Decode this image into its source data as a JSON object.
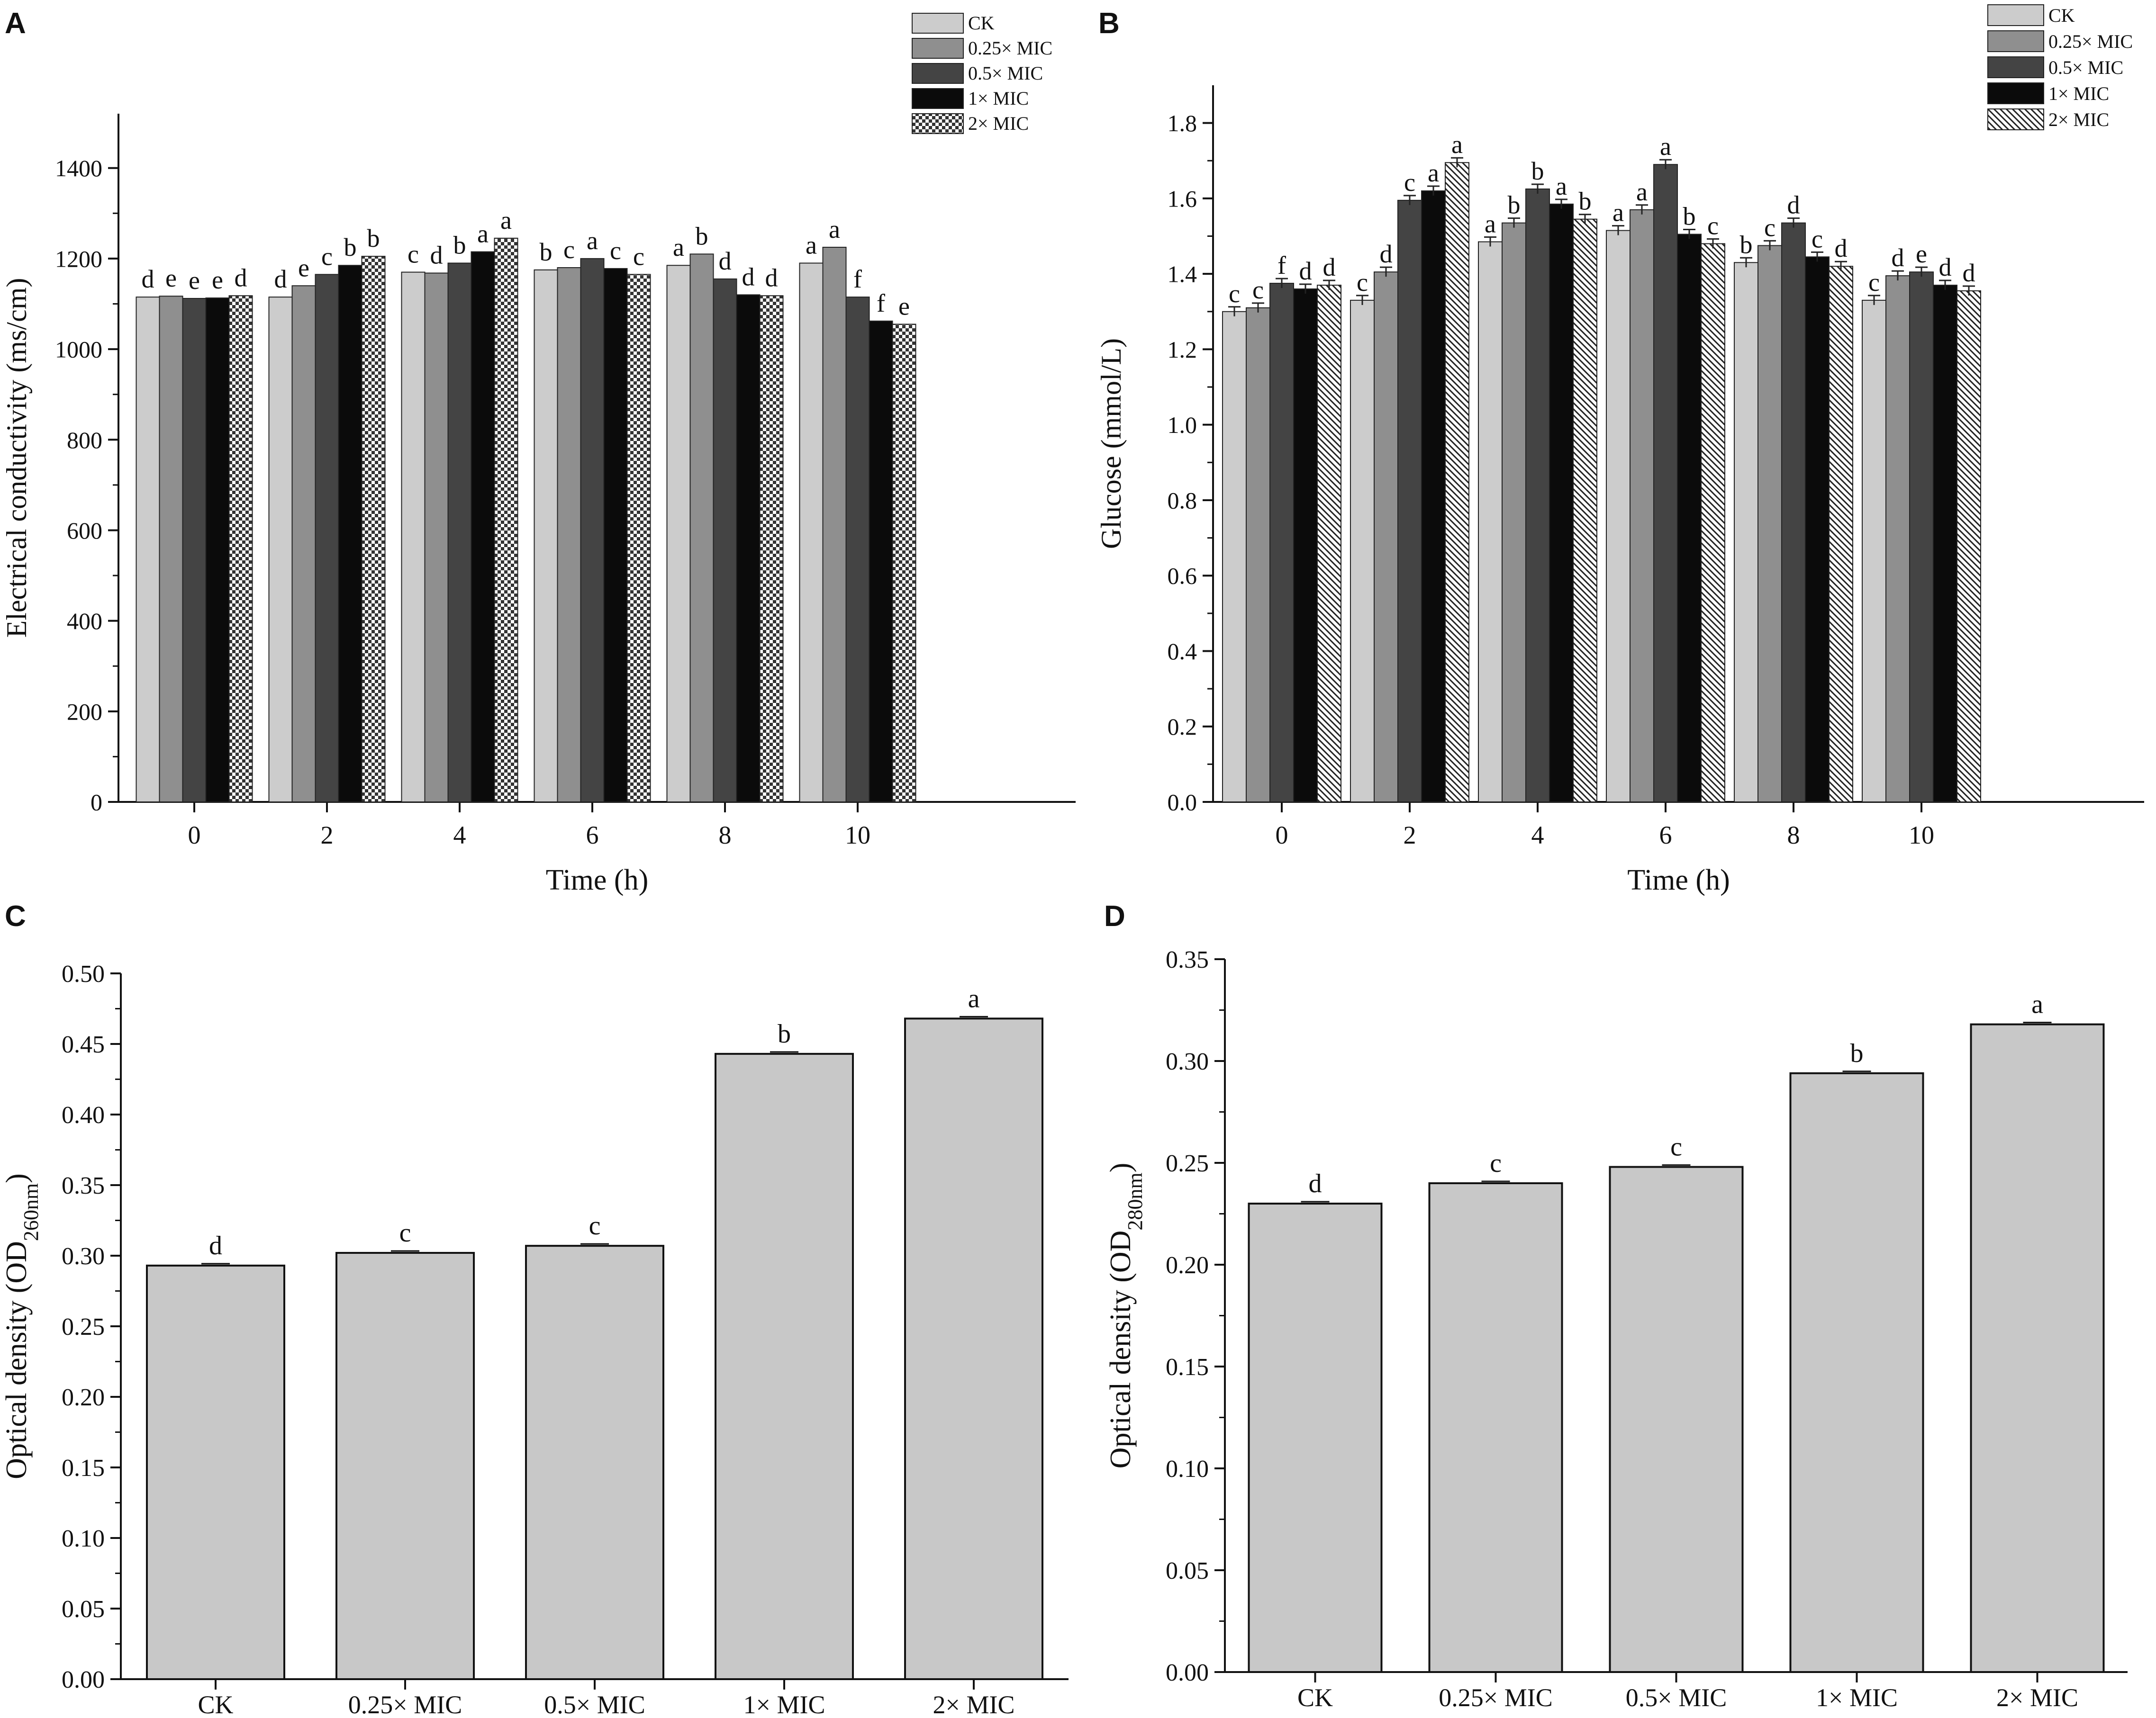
{
  "figure": {
    "colors": {
      "ck": "#cccccc",
      "mic025": "#8f8f8f",
      "mic05": "#444444",
      "mic1": "#0b0b0b",
      "mic2_pattern": "checker/hatch",
      "single_bar": "#c8c8c8",
      "axis": "#111111"
    }
  },
  "chart_data": [
    {
      "panel": "A",
      "type": "bar",
      "ylabel": "Electrical conductivity (ms/cm)",
      "xlabel": "Time (h)",
      "categories": [
        "0",
        "2",
        "4",
        "6",
        "8",
        "10"
      ],
      "ylim": [
        0,
        1520
      ],
      "yticks": [
        0,
        200,
        400,
        600,
        800,
        1000,
        1200,
        1400
      ],
      "legend": {
        "position": "top-right",
        "entries": [
          "CK",
          "0.25× MIC",
          "0.5× MIC",
          "1× MIC",
          "2× MIC"
        ]
      },
      "series": [
        {
          "name": "CK",
          "values": [
            1115,
            1115,
            1170,
            1175,
            1185,
            1190
          ],
          "labels": [
            "d",
            "d",
            "c",
            "b",
            "a",
            "a"
          ]
        },
        {
          "name": "0.25× MIC",
          "values": [
            1117,
            1140,
            1168,
            1180,
            1210,
            1225
          ],
          "labels": [
            "e",
            "e",
            "d",
            "c",
            "b",
            "a"
          ]
        },
        {
          "name": "0.5× MIC",
          "values": [
            1112,
            1165,
            1190,
            1200,
            1155,
            1115
          ],
          "labels": [
            "e",
            "c",
            "b",
            "a",
            "d",
            "f"
          ]
        },
        {
          "name": "1× MIC",
          "values": [
            1113,
            1185,
            1215,
            1178,
            1120,
            1062
          ],
          "labels": [
            "e",
            "b",
            "a",
            "c",
            "d",
            "f"
          ]
        },
        {
          "name": "2× MIC",
          "values": [
            1118,
            1205,
            1245,
            1165,
            1118,
            1055
          ],
          "labels": [
            "d",
            "b",
            "a",
            "c",
            "d",
            "e"
          ]
        }
      ]
    },
    {
      "panel": "B",
      "type": "bar",
      "ylabel": "Glucose (mmol/L)",
      "xlabel": "Time (h)",
      "categories": [
        "0",
        "2",
        "4",
        "6",
        "8",
        "10"
      ],
      "ylim": [
        0,
        1.9
      ],
      "yticks": [
        "0.0",
        "0.2",
        "0.4",
        "0.6",
        "0.8",
        "1.0",
        "1.2",
        "1.4",
        "1.6",
        "1.8"
      ],
      "legend": {
        "position": "top-right",
        "entries": [
          "CK",
          "0.25× MIC",
          "0.5× MIC",
          "1× MIC",
          "2× MIC"
        ]
      },
      "series": [
        {
          "name": "CK",
          "values": [
            1.3,
            1.33,
            1.485,
            1.515,
            1.43,
            1.33
          ],
          "labels": [
            "c",
            "c",
            "a",
            "a",
            "b",
            "c"
          ]
        },
        {
          "name": "0.25× MIC",
          "values": [
            1.31,
            1.405,
            1.535,
            1.57,
            1.475,
            1.395
          ],
          "labels": [
            "c",
            "d",
            "b",
            "a",
            "c",
            "d"
          ]
        },
        {
          "name": "0.5× MIC",
          "values": [
            1.375,
            1.595,
            1.625,
            1.69,
            1.535,
            1.405
          ],
          "labels": [
            "f",
            "c",
            "b",
            "a",
            "d",
            "e"
          ]
        },
        {
          "name": "1× MIC",
          "values": [
            1.36,
            1.62,
            1.585,
            1.505,
            1.445,
            1.37
          ],
          "labels": [
            "d",
            "a",
            "a",
            "b",
            "c",
            "d"
          ]
        },
        {
          "name": "2× MIC",
          "values": [
            1.37,
            1.695,
            1.545,
            1.48,
            1.42,
            1.355
          ],
          "labels": [
            "d",
            "a",
            "b",
            "c",
            "d",
            "d"
          ]
        }
      ]
    },
    {
      "panel": "C",
      "type": "bar",
      "ylabel": "Optical density (OD260nm)",
      "ylabel_main": "Optical density (OD",
      "ylabel_sub": "260nm",
      "ylabel_end": ")",
      "xlabel": "",
      "categories": [
        "CK",
        "0.25× MIC",
        "0.5× MIC",
        "1× MIC",
        "2× MIC"
      ],
      "values": [
        0.293,
        0.302,
        0.307,
        0.443,
        0.468
      ],
      "labels": [
        "d",
        "c",
        "c",
        "b",
        "a"
      ],
      "ylim": [
        0,
        0.5
      ],
      "yticks": [
        "0.00",
        "0.05",
        "0.10",
        "0.15",
        "0.20",
        "0.25",
        "0.30",
        "0.35",
        "0.40",
        "0.45",
        "0.50"
      ]
    },
    {
      "panel": "D",
      "type": "bar",
      "ylabel": "Optical density (OD280nm)",
      "ylabel_main": "Optical density (OD",
      "ylabel_sub": "280nm",
      "ylabel_end": ")",
      "xlabel": "",
      "categories": [
        "CK",
        "0.25× MIC",
        "0.5× MIC",
        "1× MIC",
        "2× MIC"
      ],
      "values": [
        0.23,
        0.24,
        0.248,
        0.294,
        0.318
      ],
      "labels": [
        "d",
        "c",
        "c",
        "b",
        "a"
      ],
      "ylim": [
        0,
        0.35
      ],
      "yticks": [
        "0.00",
        "0.05",
        "0.10",
        "0.15",
        "0.20",
        "0.25",
        "0.30",
        "0.35"
      ]
    }
  ]
}
